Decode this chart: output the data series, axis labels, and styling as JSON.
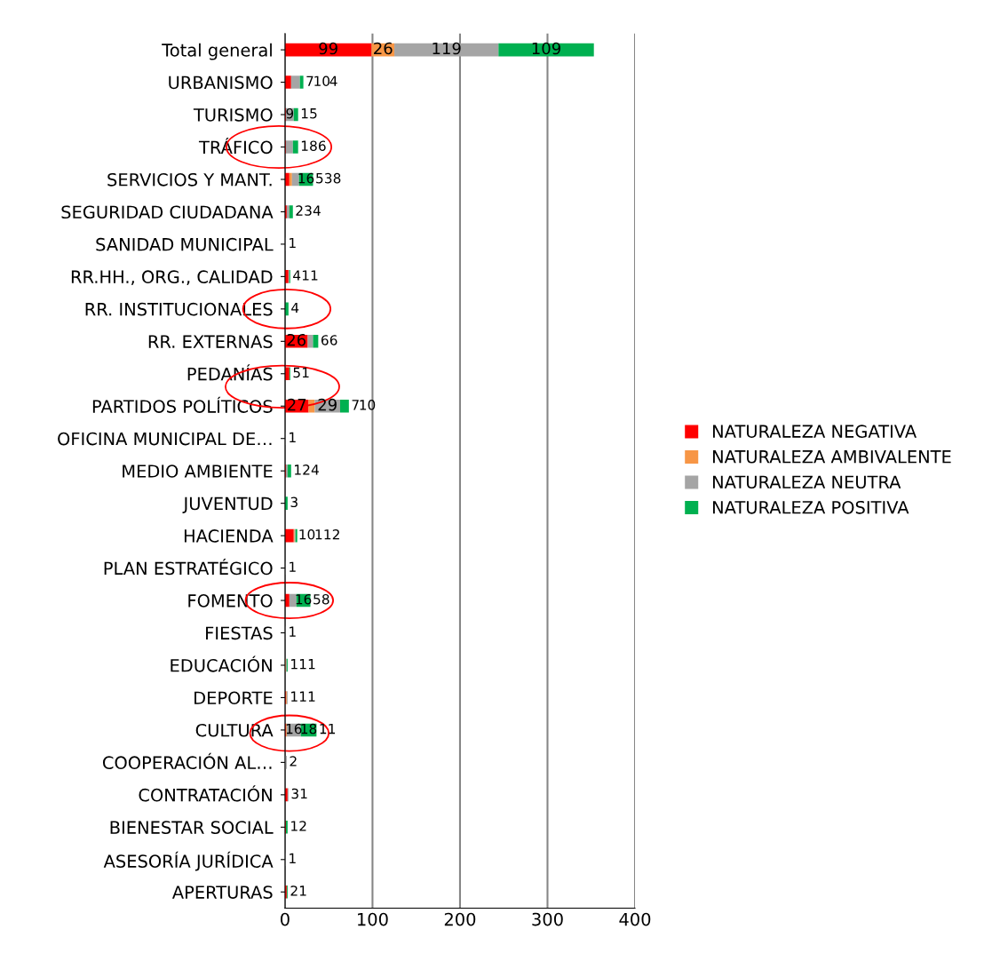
{
  "chart_data": {
    "type": "bar",
    "orientation": "horizontal",
    "stacked": true,
    "categories": [
      "Total general",
      "URBANISMO",
      "TURISMO",
      "TRÁFICO",
      "SERVICIOS Y MANT.",
      "SEGURIDAD CIUDADANA",
      "SANIDAD MUNICIPAL",
      "RR.HH., ORG., CALIDAD",
      "RR. INSTITUCIONALES",
      "RR. EXTERNAS",
      "PEDANÍAS",
      "PARTIDOS POLÍTICOS",
      "OFICINA MUNICIPAL DE…",
      "MEDIO AMBIENTE",
      "JUVENTUD",
      "HACIENDA",
      "PLAN ESTRATÉGICO",
      "FOMENTO",
      "FIESTAS",
      "EDUCACIÓN",
      "DEPORTE",
      "CULTURA",
      "COOPERACIÓN AL…",
      "CONTRATACIÓN",
      "BIENESTAR SOCIAL",
      "ASESORÍA JURÍDICA",
      "APERTURAS"
    ],
    "series": [
      {
        "name": "NATURALEZA NEGATIVA",
        "color": "#ff0000",
        "values": [
          99,
          7,
          1,
          1,
          5,
          2,
          null,
          4,
          null,
          26,
          5,
          27,
          null,
          1,
          null,
          10,
          null,
          5,
          null,
          null,
          1,
          1,
          null,
          3,
          1,
          null,
          2
        ]
      },
      {
        "name": "NATURALEZA AMBIVALENTE",
        "color": "#f79646",
        "values": [
          26,
          null,
          null,
          null,
          3,
          null,
          null,
          null,
          null,
          null,
          null,
          7,
          null,
          null,
          null,
          1,
          null,
          null,
          null,
          1,
          1,
          1,
          null,
          null,
          null,
          null,
          null
        ]
      },
      {
        "name": "NATURALEZA NEUTRA",
        "color": "#a5a5a5",
        "values": [
          119,
          10,
          9,
          8,
          8,
          3,
          1,
          1,
          null,
          6,
          null,
          29,
          1,
          2,
          null,
          1,
          1,
          8,
          1,
          1,
          1,
          16,
          2,
          1,
          null,
          1,
          null
        ]
      },
      {
        "name": "NATURALEZA POSITIVA",
        "color": "#00b050",
        "values": [
          109,
          4,
          5,
          6,
          16,
          4,
          null,
          1,
          4,
          6,
          1,
          10,
          null,
          4,
          3,
          2,
          null,
          16,
          null,
          1,
          null,
          18,
          null,
          null,
          2,
          null,
          1
        ]
      }
    ],
    "xlim": [
      0,
      400
    ],
    "xticks": [
      0,
      100,
      200,
      300,
      400
    ],
    "grid": "x",
    "legend": "right",
    "data_labels": true
  }
}
